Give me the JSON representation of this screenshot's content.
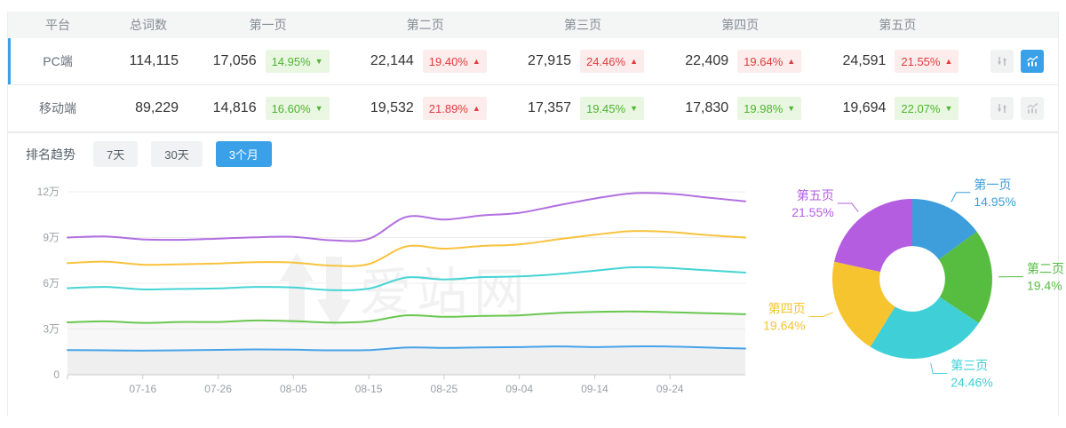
{
  "colors": {
    "accent_blue": "#3aa1e8",
    "badge_up_red": "#e23c3c",
    "badge_up_bg": "#fdecec",
    "badge_down_green": "#4db52d",
    "badge_down_bg": "#e9f6e2",
    "header_bg": "#f4f5f5"
  },
  "table": {
    "columns": [
      "平台",
      "总词数",
      "第一页",
      "第二页",
      "第三页",
      "第四页",
      "第五页"
    ],
    "rows": [
      {
        "platform": "PC端",
        "total": "114,115",
        "active": true,
        "pages": [
          {
            "count": "17,056",
            "pct": "14.95%",
            "dir": "down"
          },
          {
            "count": "22,144",
            "pct": "19.40%",
            "dir": "up"
          },
          {
            "count": "27,915",
            "pct": "24.46%",
            "dir": "up"
          },
          {
            "count": "22,409",
            "pct": "19.64%",
            "dir": "up"
          },
          {
            "count": "24,591",
            "pct": "21.55%",
            "dir": "up"
          }
        ]
      },
      {
        "platform": "移动端",
        "total": "89,229",
        "active": false,
        "pages": [
          {
            "count": "14,816",
            "pct": "16.60%",
            "dir": "down"
          },
          {
            "count": "19,532",
            "pct": "21.89%",
            "dir": "up"
          },
          {
            "count": "17,357",
            "pct": "19.45%",
            "dir": "down"
          },
          {
            "count": "17,830",
            "pct": "19.98%",
            "dir": "down"
          },
          {
            "count": "19,694",
            "pct": "22.07%",
            "dir": "down"
          }
        ]
      }
    ]
  },
  "trend": {
    "label": "排名趋势",
    "tabs": [
      {
        "label": "7天",
        "active": false
      },
      {
        "label": "30天",
        "active": false
      },
      {
        "label": "3个月",
        "active": true
      }
    ]
  },
  "watermark": "爱站网",
  "chart_data": [
    {
      "type": "line",
      "title": "排名趋势 3个月",
      "x_days": [
        0,
        5,
        10,
        15,
        20,
        25,
        30,
        35,
        40,
        45,
        50,
        55,
        60,
        65,
        70,
        75,
        80,
        85,
        90
      ],
      "x_day0_date": "07-06",
      "xtick_days": [
        0,
        10,
        20,
        30,
        40,
        50,
        60,
        70,
        80
      ],
      "xtick_labels": [
        "",
        "07-16",
        "07-26",
        "08-05",
        "08-15",
        "08-25",
        "09-04",
        "09-14",
        "09-24"
      ],
      "ytick_values": [
        0,
        3,
        6,
        9,
        12
      ],
      "ytick_labels": [
        "0",
        "3万",
        "6万",
        "9万",
        "12万"
      ],
      "ylim": [
        0,
        12.7
      ],
      "unit": "万",
      "grid": true,
      "series": [
        {
          "color": "#b16ee0",
          "area_fill": false,
          "values": [
            9.0,
            9.07,
            8.88,
            8.85,
            8.93,
            9.02,
            9.05,
            8.82,
            8.92,
            10.35,
            10.18,
            10.45,
            10.62,
            11.1,
            11.56,
            11.9,
            11.87,
            11.62,
            11.38
          ]
        },
        {
          "color": "#f9c23c",
          "area_fill": false,
          "values": [
            7.32,
            7.42,
            7.22,
            7.25,
            7.3,
            7.38,
            7.36,
            7.16,
            7.26,
            8.42,
            8.27,
            8.45,
            8.55,
            8.88,
            9.18,
            9.42,
            9.36,
            9.16,
            9.0
          ]
        },
        {
          "color": "#45d4d4",
          "area_fill": false,
          "values": [
            5.68,
            5.76,
            5.6,
            5.63,
            5.66,
            5.76,
            5.72,
            5.55,
            5.65,
            6.38,
            6.25,
            6.4,
            6.45,
            6.6,
            6.82,
            7.05,
            7.0,
            6.85,
            6.7
          ]
        },
        {
          "color": "#69c74f",
          "area_fill": true,
          "values": [
            3.44,
            3.5,
            3.4,
            3.46,
            3.46,
            3.56,
            3.52,
            3.42,
            3.5,
            3.9,
            3.8,
            3.86,
            3.9,
            4.05,
            4.12,
            4.15,
            4.1,
            4.04,
            3.97
          ]
        },
        {
          "color": "#46a3e8",
          "area_fill": true,
          "values": [
            1.62,
            1.6,
            1.58,
            1.6,
            1.63,
            1.66,
            1.64,
            1.6,
            1.62,
            1.78,
            1.76,
            1.79,
            1.81,
            1.86,
            1.81,
            1.86,
            1.85,
            1.78,
            1.72
          ]
        }
      ]
    },
    {
      "type": "pie",
      "subtype": "donut",
      "start": "top",
      "direction": "clockwise",
      "inner_radius_ratio": 0.41,
      "labels": [
        "第一页",
        "第二页",
        "第三页",
        "第四页",
        "第五页"
      ],
      "values": [
        14.95,
        19.4,
        24.46,
        19.64,
        21.55
      ],
      "pct_labels": [
        "14.95%",
        "19.4%",
        "24.46%",
        "19.64%",
        "21.55%"
      ],
      "colors": [
        "#3d9edb",
        "#56bd40",
        "#3ecfd7",
        "#f6c42f",
        "#b55de0"
      ]
    }
  ]
}
